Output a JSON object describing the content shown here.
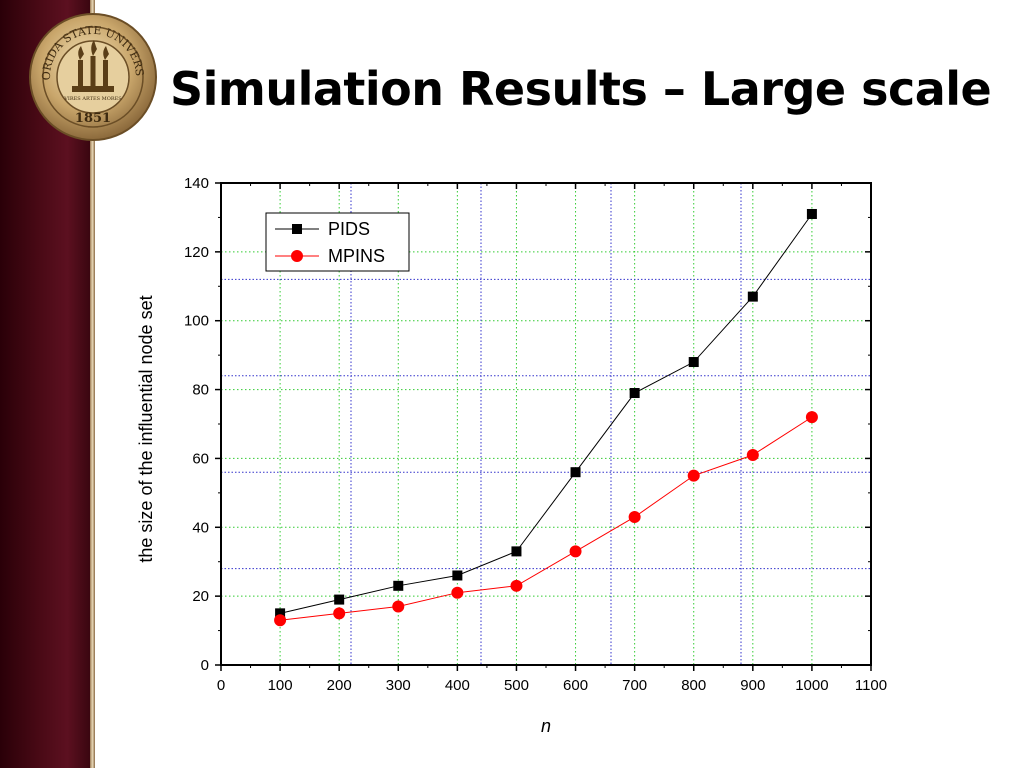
{
  "slide": {
    "title": "Simulation Results – Large scale",
    "seal_text": "FLORIDA STATE UNIVERSITY",
    "seal_year": "1851",
    "seal_mottos": [
      "VIRES",
      "ARTES",
      "MORES"
    ]
  },
  "colors": {
    "sidebar": "#4a0a16",
    "sidebar_edge": "#e9d9b8",
    "series_pids": "#000000",
    "series_mpins": "#ff0000",
    "grid_green": "#33cc33",
    "grid_blue": "#3333cc"
  },
  "chart_data": {
    "type": "line",
    "xlabel": "n",
    "ylabel": "the size of the influential node set",
    "xlim": [
      0,
      1100
    ],
    "ylim": [
      0,
      140
    ],
    "xticks": [
      0,
      100,
      200,
      300,
      400,
      500,
      600,
      700,
      800,
      900,
      1000,
      1100
    ],
    "yticks": [
      0,
      20,
      40,
      60,
      80,
      100,
      120,
      140
    ],
    "grid": "on",
    "legend_position": "top-left",
    "x": [
      100,
      200,
      300,
      400,
      500,
      600,
      700,
      800,
      900,
      1000
    ],
    "series": [
      {
        "name": "PIDS",
        "marker": "square",
        "color": "#000000",
        "values": [
          15,
          19,
          23,
          26,
          33,
          56,
          79,
          88,
          107,
          131
        ]
      },
      {
        "name": "MPINS",
        "marker": "circle",
        "color": "#ff0000",
        "values": [
          13,
          15,
          17,
          21,
          23,
          33,
          43,
          55,
          61,
          72
        ]
      }
    ]
  }
}
